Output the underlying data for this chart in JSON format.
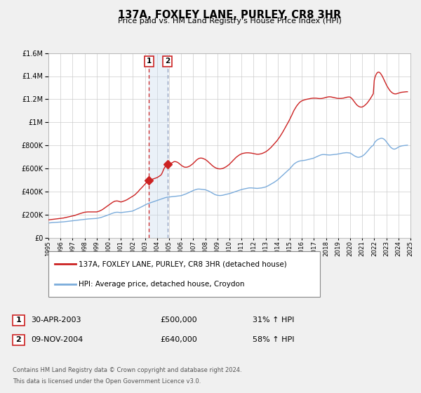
{
  "title": "137A, FOXLEY LANE, PURLEY, CR8 3HR",
  "subtitle": "Price paid vs. HM Land Registry's House Price Index (HPI)",
  "legend_line1": "137A, FOXLEY LANE, PURLEY, CR8 3HR (detached house)",
  "legend_line2": "HPI: Average price, detached house, Croydon",
  "footer1": "Contains HM Land Registry data © Crown copyright and database right 2024.",
  "footer2": "This data is licensed under the Open Government Licence v3.0.",
  "hpi_color": "#7aabdb",
  "price_color": "#cc2222",
  "shade_color": "#c5d9ed",
  "transaction1_date": 2003.33,
  "transaction1_price": 500000,
  "transaction2_date": 2004.86,
  "transaction2_price": 640000,
  "ylim": [
    0,
    1600000
  ],
  "xlim_start": 1995,
  "xlim_end": 2025,
  "background": "#f0f0f0",
  "plot_background": "#ffffff",
  "hpi_data_years": [
    1995.0,
    1995.08,
    1995.17,
    1995.25,
    1995.33,
    1995.42,
    1995.5,
    1995.58,
    1995.67,
    1995.75,
    1995.83,
    1995.92,
    1996.0,
    1996.08,
    1996.17,
    1996.25,
    1996.33,
    1996.42,
    1996.5,
    1996.58,
    1996.67,
    1996.75,
    1996.83,
    1996.92,
    1997.0,
    1997.08,
    1997.17,
    1997.25,
    1997.33,
    1997.42,
    1997.5,
    1997.58,
    1997.67,
    1997.75,
    1997.83,
    1997.92,
    1998.0,
    1998.08,
    1998.17,
    1998.25,
    1998.33,
    1998.42,
    1998.5,
    1998.58,
    1998.67,
    1998.75,
    1998.83,
    1998.92,
    1999.0,
    1999.08,
    1999.17,
    1999.25,
    1999.33,
    1999.42,
    1999.5,
    1999.58,
    1999.67,
    1999.75,
    1999.83,
    1999.92,
    2000.0,
    2000.08,
    2000.17,
    2000.25,
    2000.33,
    2000.42,
    2000.5,
    2000.58,
    2000.67,
    2000.75,
    2000.83,
    2000.92,
    2001.0,
    2001.08,
    2001.17,
    2001.25,
    2001.33,
    2001.42,
    2001.5,
    2001.58,
    2001.67,
    2001.75,
    2001.83,
    2001.92,
    2002.0,
    2002.08,
    2002.17,
    2002.25,
    2002.33,
    2002.42,
    2002.5,
    2002.58,
    2002.67,
    2002.75,
    2002.83,
    2002.92,
    2003.0,
    2003.08,
    2003.17,
    2003.25,
    2003.33,
    2003.42,
    2003.5,
    2003.58,
    2003.67,
    2003.75,
    2003.83,
    2003.92,
    2004.0,
    2004.08,
    2004.17,
    2004.25,
    2004.33,
    2004.42,
    2004.5,
    2004.58,
    2004.67,
    2004.75,
    2004.83,
    2004.92,
    2005.0,
    2005.08,
    2005.17,
    2005.25,
    2005.33,
    2005.42,
    2005.5,
    2005.58,
    2005.67,
    2005.75,
    2005.83,
    2005.92,
    2006.0,
    2006.08,
    2006.17,
    2006.25,
    2006.33,
    2006.42,
    2006.5,
    2006.58,
    2006.67,
    2006.75,
    2006.83,
    2006.92,
    2007.0,
    2007.08,
    2007.17,
    2007.25,
    2007.33,
    2007.42,
    2007.5,
    2007.58,
    2007.67,
    2007.75,
    2007.83,
    2007.92,
    2008.0,
    2008.08,
    2008.17,
    2008.25,
    2008.33,
    2008.42,
    2008.5,
    2008.58,
    2008.67,
    2008.75,
    2008.83,
    2008.92,
    2009.0,
    2009.08,
    2009.17,
    2009.25,
    2009.33,
    2009.42,
    2009.5,
    2009.58,
    2009.67,
    2009.75,
    2009.83,
    2009.92,
    2010.0,
    2010.08,
    2010.17,
    2010.25,
    2010.33,
    2010.42,
    2010.5,
    2010.58,
    2010.67,
    2010.75,
    2010.83,
    2010.92,
    2011.0,
    2011.08,
    2011.17,
    2011.25,
    2011.33,
    2011.42,
    2011.5,
    2011.58,
    2011.67,
    2011.75,
    2011.83,
    2011.92,
    2012.0,
    2012.08,
    2012.17,
    2012.25,
    2012.33,
    2012.42,
    2012.5,
    2012.58,
    2012.67,
    2012.75,
    2012.83,
    2012.92,
    2013.0,
    2013.08,
    2013.17,
    2013.25,
    2013.33,
    2013.42,
    2013.5,
    2013.58,
    2013.67,
    2013.75,
    2013.83,
    2013.92,
    2014.0,
    2014.08,
    2014.17,
    2014.25,
    2014.33,
    2014.42,
    2014.5,
    2014.58,
    2014.67,
    2014.75,
    2014.83,
    2014.92,
    2015.0,
    2015.08,
    2015.17,
    2015.25,
    2015.33,
    2015.42,
    2015.5,
    2015.58,
    2015.67,
    2015.75,
    2015.83,
    2015.92,
    2016.0,
    2016.08,
    2016.17,
    2016.25,
    2016.33,
    2016.42,
    2016.5,
    2016.58,
    2016.67,
    2016.75,
    2016.83,
    2016.92,
    2017.0,
    2017.08,
    2017.17,
    2017.25,
    2017.33,
    2017.42,
    2017.5,
    2017.58,
    2017.67,
    2017.75,
    2017.83,
    2017.92,
    2018.0,
    2018.08,
    2018.17,
    2018.25,
    2018.33,
    2018.42,
    2018.5,
    2018.58,
    2018.67,
    2018.75,
    2018.83,
    2018.92,
    2019.0,
    2019.08,
    2019.17,
    2019.25,
    2019.33,
    2019.42,
    2019.5,
    2019.58,
    2019.67,
    2019.75,
    2019.83,
    2019.92,
    2020.0,
    2020.08,
    2020.17,
    2020.25,
    2020.33,
    2020.42,
    2020.5,
    2020.58,
    2020.67,
    2020.75,
    2020.83,
    2020.92,
    2021.0,
    2021.08,
    2021.17,
    2021.25,
    2021.33,
    2021.42,
    2021.5,
    2021.58,
    2021.67,
    2021.75,
    2021.83,
    2021.92,
    2022.0,
    2022.08,
    2022.17,
    2022.25,
    2022.33,
    2022.42,
    2022.5,
    2022.58,
    2022.67,
    2022.75,
    2022.83,
    2022.92,
    2023.0,
    2023.08,
    2023.17,
    2023.25,
    2023.33,
    2023.42,
    2023.5,
    2023.58,
    2023.67,
    2023.75,
    2023.83,
    2023.92,
    2024.0,
    2024.08,
    2024.17,
    2024.25,
    2024.33,
    2024.42,
    2024.5,
    2024.58,
    2024.67,
    2024.75
  ],
  "hpi_data_values": [
    128000,
    129000,
    130000,
    131000,
    131500,
    132000,
    133000,
    133500,
    134000,
    134500,
    135000,
    135500,
    136000,
    136500,
    137000,
    138000,
    139000,
    140000,
    141000,
    142000,
    143000,
    144000,
    145000,
    146000,
    147000,
    148000,
    150000,
    151000,
    152000,
    153000,
    154000,
    155000,
    156000,
    157000,
    158000,
    159000,
    160000,
    161000,
    162000,
    163000,
    163500,
    164000,
    164500,
    165000,
    165500,
    166000,
    166500,
    167000,
    168000,
    169500,
    171000,
    173000,
    175000,
    178000,
    181000,
    184000,
    187000,
    190000,
    193000,
    196000,
    199000,
    203000,
    207000,
    210000,
    213000,
    216000,
    219000,
    220000,
    221000,
    221000,
    220000,
    219000,
    218000,
    219000,
    220000,
    221000,
    222000,
    223000,
    224000,
    225000,
    226000,
    227000,
    228000,
    230000,
    233000,
    237000,
    241000,
    245000,
    249000,
    253000,
    257000,
    261000,
    265000,
    269000,
    274000,
    279000,
    284000,
    288000,
    292000,
    296000,
    299000,
    302000,
    305000,
    308000,
    311000,
    314000,
    317000,
    320000,
    323000,
    326000,
    329000,
    332000,
    335000,
    338000,
    341000,
    344000,
    347000,
    349000,
    351000,
    352000,
    353000,
    354000,
    355000,
    356000,
    357000,
    358000,
    359000,
    360000,
    361000,
    362000,
    363000,
    364000,
    365000,
    368000,
    371000,
    374000,
    377000,
    381000,
    385000,
    389000,
    393000,
    397000,
    401000,
    405000,
    409000,
    413000,
    416000,
    419000,
    421000,
    422000,
    422000,
    421000,
    420000,
    419000,
    418000,
    417000,
    416000,
    413000,
    410000,
    406000,
    402000,
    397000,
    392000,
    387000,
    382000,
    377000,
    373000,
    370000,
    368000,
    367000,
    366000,
    366000,
    367000,
    368000,
    370000,
    372000,
    374000,
    376000,
    378000,
    380000,
    382000,
    385000,
    388000,
    391000,
    394000,
    397000,
    400000,
    403000,
    406000,
    409000,
    412000,
    415000,
    418000,
    420000,
    422000,
    424000,
    426000,
    428000,
    430000,
    431000,
    432000,
    432000,
    432000,
    431000,
    430000,
    429000,
    428000,
    428000,
    428000,
    429000,
    430000,
    431000,
    432000,
    434000,
    436000,
    438000,
    440000,
    444000,
    448000,
    453000,
    458000,
    463000,
    468000,
    473000,
    478000,
    484000,
    490000,
    496000,
    502000,
    510000,
    518000,
    526000,
    534000,
    542000,
    550000,
    558000,
    566000,
    574000,
    582000,
    590000,
    598000,
    608000,
    618000,
    628000,
    637000,
    644000,
    650000,
    655000,
    659000,
    663000,
    665000,
    667000,
    668000,
    669000,
    670000,
    671000,
    673000,
    675000,
    677000,
    679000,
    681000,
    683000,
    685000,
    688000,
    691000,
    695000,
    699000,
    703000,
    707000,
    711000,
    715000,
    718000,
    720000,
    721000,
    721000,
    720000,
    719000,
    718000,
    717000,
    717000,
    717000,
    718000,
    719000,
    720000,
    721000,
    722000,
    723000,
    724000,
    726000,
    727000,
    729000,
    731000,
    733000,
    734000,
    735000,
    736000,
    737000,
    737000,
    736000,
    735000,
    734000,
    729000,
    723000,
    717000,
    711000,
    706000,
    702000,
    699000,
    697000,
    698000,
    700000,
    703000,
    707000,
    713000,
    720000,
    728000,
    737000,
    747000,
    757000,
    768000,
    779000,
    788000,
    795000,
    800000,
    819000,
    832000,
    841000,
    848000,
    853000,
    857000,
    860000,
    862000,
    861000,
    858000,
    852000,
    843000,
    832000,
    820000,
    808000,
    797000,
    787000,
    779000,
    773000,
    769000,
    768000,
    770000,
    774000,
    780000,
    786000,
    790000,
    793000,
    795000,
    797000,
    798000,
    799000,
    800000,
    801000,
    802000
  ],
  "price_data_years": [
    1995.0,
    1995.08,
    1995.17,
    1995.25,
    1995.33,
    1995.42,
    1995.5,
    1995.58,
    1995.67,
    1995.75,
    1995.83,
    1995.92,
    1996.0,
    1996.08,
    1996.17,
    1996.25,
    1996.33,
    1996.42,
    1996.5,
    1996.58,
    1996.67,
    1996.75,
    1996.83,
    1996.92,
    1997.0,
    1997.08,
    1997.17,
    1997.25,
    1997.33,
    1997.42,
    1997.5,
    1997.58,
    1997.67,
    1997.75,
    1997.83,
    1997.92,
    1998.0,
    1998.08,
    1998.17,
    1998.25,
    1998.33,
    1998.42,
    1998.5,
    1998.58,
    1998.67,
    1998.75,
    1998.83,
    1998.92,
    1999.0,
    1999.08,
    1999.17,
    1999.25,
    1999.33,
    1999.42,
    1999.5,
    1999.58,
    1999.67,
    1999.75,
    1999.83,
    1999.92,
    2000.0,
    2000.08,
    2000.17,
    2000.25,
    2000.33,
    2000.42,
    2000.5,
    2000.58,
    2000.67,
    2000.75,
    2000.83,
    2000.92,
    2001.0,
    2001.08,
    2001.17,
    2001.25,
    2001.33,
    2001.42,
    2001.5,
    2001.58,
    2001.67,
    2001.75,
    2001.83,
    2001.92,
    2002.0,
    2002.08,
    2002.17,
    2002.25,
    2002.33,
    2002.42,
    2002.5,
    2002.58,
    2002.67,
    2002.75,
    2002.83,
    2002.92,
    2003.0,
    2003.08,
    2003.17,
    2003.25,
    2003.33,
    2003.42,
    2003.5,
    2003.58,
    2003.67,
    2003.75,
    2003.83,
    2003.92,
    2004.0,
    2004.08,
    2004.17,
    2004.25,
    2004.33,
    2004.42,
    2004.5,
    2004.58,
    2004.67,
    2004.75,
    2004.83,
    2004.92,
    2005.0,
    2005.08,
    2005.17,
    2005.25,
    2005.33,
    2005.42,
    2005.5,
    2005.58,
    2005.67,
    2005.75,
    2005.83,
    2005.92,
    2006.0,
    2006.08,
    2006.17,
    2006.25,
    2006.33,
    2006.42,
    2006.5,
    2006.58,
    2006.67,
    2006.75,
    2006.83,
    2006.92,
    2007.0,
    2007.08,
    2007.17,
    2007.25,
    2007.33,
    2007.42,
    2007.5,
    2007.58,
    2007.67,
    2007.75,
    2007.83,
    2007.92,
    2008.0,
    2008.08,
    2008.17,
    2008.25,
    2008.33,
    2008.42,
    2008.5,
    2008.58,
    2008.67,
    2008.75,
    2008.83,
    2008.92,
    2009.0,
    2009.08,
    2009.17,
    2009.25,
    2009.33,
    2009.42,
    2009.5,
    2009.58,
    2009.67,
    2009.75,
    2009.83,
    2009.92,
    2010.0,
    2010.08,
    2010.17,
    2010.25,
    2010.33,
    2010.42,
    2010.5,
    2010.58,
    2010.67,
    2010.75,
    2010.83,
    2010.92,
    2011.0,
    2011.08,
    2011.17,
    2011.25,
    2011.33,
    2011.42,
    2011.5,
    2011.58,
    2011.67,
    2011.75,
    2011.83,
    2011.92,
    2012.0,
    2012.08,
    2012.17,
    2012.25,
    2012.33,
    2012.42,
    2012.5,
    2012.58,
    2012.67,
    2012.75,
    2012.83,
    2012.92,
    2013.0,
    2013.08,
    2013.17,
    2013.25,
    2013.33,
    2013.42,
    2013.5,
    2013.58,
    2013.67,
    2013.75,
    2013.83,
    2013.92,
    2014.0,
    2014.08,
    2014.17,
    2014.25,
    2014.33,
    2014.42,
    2014.5,
    2014.58,
    2014.67,
    2014.75,
    2014.83,
    2014.92,
    2015.0,
    2015.08,
    2015.17,
    2015.25,
    2015.33,
    2015.42,
    2015.5,
    2015.58,
    2015.67,
    2015.75,
    2015.83,
    2015.92,
    2016.0,
    2016.08,
    2016.17,
    2016.25,
    2016.33,
    2016.42,
    2016.5,
    2016.58,
    2016.67,
    2016.75,
    2016.83,
    2016.92,
    2017.0,
    2017.08,
    2017.17,
    2017.25,
    2017.33,
    2017.42,
    2017.5,
    2017.58,
    2017.67,
    2017.75,
    2017.83,
    2017.92,
    2018.0,
    2018.08,
    2018.17,
    2018.25,
    2018.33,
    2018.42,
    2018.5,
    2018.58,
    2018.67,
    2018.75,
    2018.83,
    2018.92,
    2019.0,
    2019.08,
    2019.17,
    2019.25,
    2019.33,
    2019.42,
    2019.5,
    2019.58,
    2019.67,
    2019.75,
    2019.83,
    2019.92,
    2020.0,
    2020.08,
    2020.17,
    2020.25,
    2020.33,
    2020.42,
    2020.5,
    2020.58,
    2020.67,
    2020.75,
    2020.83,
    2020.92,
    2021.0,
    2021.08,
    2021.17,
    2021.25,
    2021.33,
    2021.42,
    2021.5,
    2021.58,
    2021.67,
    2021.75,
    2021.83,
    2021.92,
    2022.0,
    2022.08,
    2022.17,
    2022.25,
    2022.33,
    2022.42,
    2022.5,
    2022.58,
    2022.67,
    2022.75,
    2022.83,
    2022.92,
    2023.0,
    2023.08,
    2023.17,
    2023.25,
    2023.33,
    2023.42,
    2023.5,
    2023.58,
    2023.67,
    2023.75,
    2023.83,
    2023.92,
    2024.0,
    2024.08,
    2024.17,
    2024.25,
    2024.33,
    2024.42,
    2024.5,
    2024.58,
    2024.67,
    2024.75
  ],
  "price_data_values": [
    155000,
    156000,
    157000,
    158000,
    159000,
    160000,
    161000,
    162000,
    163000,
    164000,
    165000,
    166000,
    167000,
    168000,
    170000,
    171000,
    173000,
    175000,
    177000,
    179000,
    181000,
    183000,
    185000,
    187000,
    189000,
    191000,
    193000,
    196000,
    199000,
    202000,
    205000,
    208000,
    211000,
    214000,
    217000,
    219000,
    221000,
    222000,
    223000,
    224000,
    224000,
    224000,
    224000,
    224000,
    224000,
    224000,
    224000,
    224000,
    224000,
    226000,
    229000,
    232000,
    236000,
    241000,
    246000,
    252000,
    258000,
    264000,
    270000,
    277000,
    283000,
    290000,
    297000,
    303000,
    308000,
    313000,
    317000,
    318000,
    319000,
    318000,
    316000,
    313000,
    310000,
    312000,
    315000,
    318000,
    321000,
    325000,
    329000,
    334000,
    339000,
    344000,
    349000,
    355000,
    360000,
    366000,
    373000,
    381000,
    389000,
    398000,
    408000,
    418000,
    427000,
    436000,
    445000,
    455000,
    465000,
    473000,
    481000,
    489000,
    497000,
    500000,
    503000,
    506000,
    509000,
    512000,
    515000,
    518000,
    521000,
    526000,
    532000,
    538000,
    544000,
    560000,
    580000,
    600000,
    615000,
    625000,
    632000,
    637000,
    640000,
    641000,
    645000,
    650000,
    655000,
    660000,
    660000,
    658000,
    655000,
    650000,
    643000,
    636000,
    628000,
    622000,
    617000,
    613000,
    611000,
    611000,
    612000,
    615000,
    619000,
    624000,
    630000,
    637000,
    644000,
    653000,
    662000,
    671000,
    678000,
    684000,
    688000,
    690000,
    690000,
    689000,
    686000,
    682000,
    678000,
    672000,
    665000,
    657000,
    649000,
    641000,
    633000,
    625000,
    618000,
    612000,
    607000,
    603000,
    600000,
    598000,
    597000,
    597000,
    598000,
    600000,
    603000,
    607000,
    612000,
    617000,
    623000,
    630000,
    637000,
    646000,
    655000,
    664000,
    673000,
    682000,
    691000,
    699000,
    706000,
    713000,
    718000,
    723000,
    727000,
    730000,
    732000,
    734000,
    735000,
    736000,
    736000,
    736000,
    735000,
    734000,
    733000,
    731000,
    729000,
    727000,
    725000,
    724000,
    724000,
    724000,
    725000,
    727000,
    729000,
    732000,
    736000,
    740000,
    744000,
    750000,
    757000,
    764000,
    772000,
    780000,
    789000,
    798000,
    808000,
    818000,
    828000,
    838000,
    849000,
    861000,
    874000,
    887000,
    901000,
    916000,
    931000,
    946000,
    962000,
    978000,
    994000,
    1010000,
    1027000,
    1045000,
    1063000,
    1082000,
    1100000,
    1116000,
    1130000,
    1143000,
    1155000,
    1165000,
    1174000,
    1181000,
    1186000,
    1190000,
    1193000,
    1196000,
    1198000,
    1200000,
    1202000,
    1204000,
    1206000,
    1207000,
    1208000,
    1209000,
    1209000,
    1209000,
    1209000,
    1208000,
    1207000,
    1206000,
    1206000,
    1206000,
    1207000,
    1209000,
    1211000,
    1213000,
    1216000,
    1218000,
    1220000,
    1221000,
    1221000,
    1220000,
    1218000,
    1216000,
    1214000,
    1212000,
    1210000,
    1208000,
    1207000,
    1207000,
    1207000,
    1207000,
    1208000,
    1209000,
    1211000,
    1213000,
    1216000,
    1218000,
    1219000,
    1220000,
    1218000,
    1212000,
    1203000,
    1192000,
    1180000,
    1168000,
    1157000,
    1148000,
    1141000,
    1136000,
    1133000,
    1132000,
    1133000,
    1137000,
    1143000,
    1150000,
    1158000,
    1168000,
    1179000,
    1191000,
    1204000,
    1218000,
    1233000,
    1248000,
    1364000,
    1398000,
    1418000,
    1430000,
    1435000,
    1433000,
    1426000,
    1414000,
    1399000,
    1381000,
    1363000,
    1344000,
    1326000,
    1310000,
    1295000,
    1282000,
    1271000,
    1262000,
    1255000,
    1250000,
    1247000,
    1246000,
    1247000,
    1250000,
    1253000,
    1256000,
    1258000,
    1260000,
    1261000,
    1262000,
    1263000,
    1264000,
    1265000,
    1265000
  ]
}
